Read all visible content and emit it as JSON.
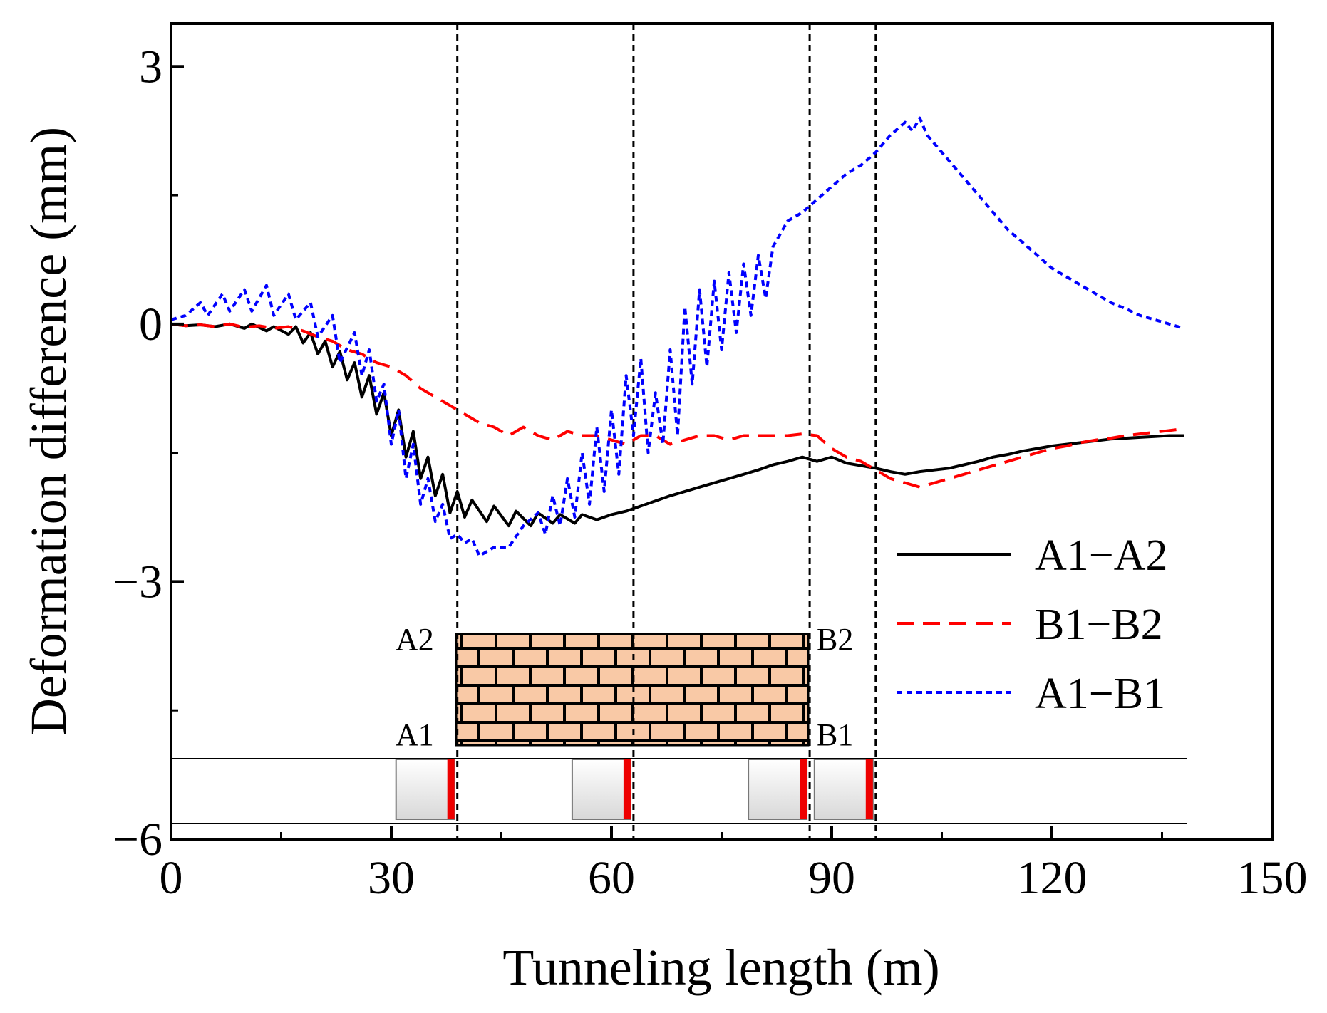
{
  "chart_data": {
    "type": "line",
    "xlabel": "Tunneling length (m)",
    "ylabel": "Deformation difference (mm)",
    "xlim": [
      0,
      150
    ],
    "ylim": [
      -6,
      3.5
    ],
    "x_ticks": [
      0,
      30,
      60,
      90,
      120,
      150
    ],
    "x_tick_labels": [
      "0",
      "30",
      "60",
      "90",
      "120",
      "150"
    ],
    "y_ticks": [
      3,
      0,
      -3,
      -6
    ],
    "y_tick_labels": [
      "3",
      "0",
      "−3",
      "−6"
    ],
    "grid": false,
    "legend_position": "bottom-right",
    "vertical_markers": [
      39,
      63,
      87,
      96
    ],
    "series": [
      {
        "name": "A1−A2",
        "color": "#000000",
        "dash": "solid",
        "points": [
          [
            0,
            0
          ],
          [
            2,
            -0.02
          ],
          [
            4,
            -0.01
          ],
          [
            6,
            -0.03
          ],
          [
            8,
            0.0
          ],
          [
            10,
            -0.05
          ],
          [
            11,
            0.0
          ],
          [
            13,
            -0.08
          ],
          [
            14,
            -0.03
          ],
          [
            16,
            -0.12
          ],
          [
            17,
            -0.03
          ],
          [
            18,
            -0.22
          ],
          [
            19,
            -0.1
          ],
          [
            20,
            -0.35
          ],
          [
            21,
            -0.2
          ],
          [
            22,
            -0.5
          ],
          [
            23,
            -0.32
          ],
          [
            24,
            -0.65
          ],
          [
            25,
            -0.45
          ],
          [
            26,
            -0.85
          ],
          [
            27,
            -0.6
          ],
          [
            28,
            -1.05
          ],
          [
            29,
            -0.8
          ],
          [
            30,
            -1.3
          ],
          [
            31,
            -1.0
          ],
          [
            32,
            -1.55
          ],
          [
            33,
            -1.25
          ],
          [
            34,
            -1.8
          ],
          [
            35,
            -1.55
          ],
          [
            36,
            -2.0
          ],
          [
            37,
            -1.75
          ],
          [
            38,
            -2.2
          ],
          [
            39,
            -1.95
          ],
          [
            40,
            -2.25
          ],
          [
            41,
            -2.05
          ],
          [
            43,
            -2.3
          ],
          [
            44,
            -2.12
          ],
          [
            46,
            -2.35
          ],
          [
            47,
            -2.18
          ],
          [
            49,
            -2.35
          ],
          [
            50,
            -2.2
          ],
          [
            52,
            -2.32
          ],
          [
            53,
            -2.22
          ],
          [
            55,
            -2.32
          ],
          [
            56,
            -2.22
          ],
          [
            58,
            -2.28
          ],
          [
            60,
            -2.22
          ],
          [
            62,
            -2.18
          ],
          [
            64,
            -2.12
          ],
          [
            66,
            -2.06
          ],
          [
            68,
            -2.0
          ],
          [
            70,
            -1.95
          ],
          [
            72,
            -1.9
          ],
          [
            74,
            -1.85
          ],
          [
            76,
            -1.8
          ],
          [
            78,
            -1.75
          ],
          [
            80,
            -1.7
          ],
          [
            82,
            -1.64
          ],
          [
            84,
            -1.6
          ],
          [
            86,
            -1.55
          ],
          [
            88,
            -1.6
          ],
          [
            90,
            -1.55
          ],
          [
            92,
            -1.62
          ],
          [
            94,
            -1.65
          ],
          [
            96,
            -1.68
          ],
          [
            98,
            -1.72
          ],
          [
            100,
            -1.75
          ],
          [
            102,
            -1.72
          ],
          [
            104,
            -1.7
          ],
          [
            106,
            -1.68
          ],
          [
            108,
            -1.64
          ],
          [
            110,
            -1.6
          ],
          [
            112,
            -1.55
          ],
          [
            114,
            -1.52
          ],
          [
            116,
            -1.48
          ],
          [
            118,
            -1.45
          ],
          [
            120,
            -1.42
          ],
          [
            122,
            -1.4
          ],
          [
            124,
            -1.38
          ],
          [
            126,
            -1.36
          ],
          [
            128,
            -1.34
          ],
          [
            130,
            -1.33
          ],
          [
            132,
            -1.32
          ],
          [
            134,
            -1.31
          ],
          [
            136,
            -1.3
          ],
          [
            138,
            -1.3
          ]
        ]
      },
      {
        "name": "B1−B2",
        "color": "#ff0000",
        "dash": "dashed",
        "points": [
          [
            0,
            0
          ],
          [
            2,
            -0.02
          ],
          [
            4,
            -0.01
          ],
          [
            6,
            -0.03
          ],
          [
            8,
            0.0
          ],
          [
            10,
            -0.04
          ],
          [
            12,
            -0.02
          ],
          [
            14,
            -0.05
          ],
          [
            16,
            -0.03
          ],
          [
            18,
            -0.08
          ],
          [
            20,
            -0.15
          ],
          [
            22,
            -0.2
          ],
          [
            24,
            -0.3
          ],
          [
            26,
            -0.35
          ],
          [
            28,
            -0.45
          ],
          [
            30,
            -0.5
          ],
          [
            32,
            -0.6
          ],
          [
            34,
            -0.75
          ],
          [
            36,
            -0.85
          ],
          [
            38,
            -0.95
          ],
          [
            39,
            -1.0
          ],
          [
            40,
            -1.05
          ],
          [
            42,
            -1.15
          ],
          [
            44,
            -1.2
          ],
          [
            46,
            -1.3
          ],
          [
            48,
            -1.2
          ],
          [
            50,
            -1.3
          ],
          [
            52,
            -1.35
          ],
          [
            54,
            -1.25
          ],
          [
            56,
            -1.3
          ],
          [
            58,
            -1.3
          ],
          [
            60,
            -1.35
          ],
          [
            62,
            -1.4
          ],
          [
            64,
            -1.3
          ],
          [
            66,
            -1.3
          ],
          [
            68,
            -1.4
          ],
          [
            70,
            -1.35
          ],
          [
            72,
            -1.3
          ],
          [
            74,
            -1.3
          ],
          [
            76,
            -1.35
          ],
          [
            78,
            -1.3
          ],
          [
            80,
            -1.3
          ],
          [
            82,
            -1.3
          ],
          [
            84,
            -1.3
          ],
          [
            86,
            -1.28
          ],
          [
            88,
            -1.3
          ],
          [
            90,
            -1.45
          ],
          [
            92,
            -1.55
          ],
          [
            94,
            -1.6
          ],
          [
            96,
            -1.7
          ],
          [
            98,
            -1.8
          ],
          [
            100,
            -1.85
          ],
          [
            102,
            -1.9
          ],
          [
            104,
            -1.85
          ],
          [
            106,
            -1.8
          ],
          [
            108,
            -1.75
          ],
          [
            110,
            -1.7
          ],
          [
            112,
            -1.65
          ],
          [
            114,
            -1.6
          ],
          [
            116,
            -1.55
          ],
          [
            118,
            -1.5
          ],
          [
            120,
            -1.45
          ],
          [
            122,
            -1.42
          ],
          [
            124,
            -1.38
          ],
          [
            126,
            -1.35
          ],
          [
            128,
            -1.33
          ],
          [
            130,
            -1.3
          ],
          [
            132,
            -1.28
          ],
          [
            134,
            -1.26
          ],
          [
            136,
            -1.24
          ],
          [
            138,
            -1.22
          ]
        ]
      },
      {
        "name": "A1−B1",
        "color": "#0000ff",
        "dash": "dotted",
        "points": [
          [
            0,
            0.05
          ],
          [
            2,
            0.1
          ],
          [
            4,
            0.25
          ],
          [
            5,
            0.1
          ],
          [
            7,
            0.35
          ],
          [
            8,
            0.15
          ],
          [
            10,
            0.4
          ],
          [
            11,
            0.15
          ],
          [
            13,
            0.45
          ],
          [
            14,
            0.1
          ],
          [
            16,
            0.35
          ],
          [
            17,
            0.05
          ],
          [
            19,
            0.25
          ],
          [
            20,
            -0.15
          ],
          [
            22,
            0.1
          ],
          [
            23,
            -0.45
          ],
          [
            25,
            -0.1
          ],
          [
            26,
            -0.6
          ],
          [
            27,
            -0.3
          ],
          [
            28,
            -0.9
          ],
          [
            29,
            -0.7
          ],
          [
            30,
            -1.4
          ],
          [
            31,
            -1.0
          ],
          [
            32,
            -1.8
          ],
          [
            33,
            -1.4
          ],
          [
            34,
            -2.1
          ],
          [
            35,
            -1.8
          ],
          [
            36,
            -2.3
          ],
          [
            37,
            -2.1
          ],
          [
            38,
            -2.5
          ],
          [
            39,
            -2.45
          ],
          [
            40,
            -2.55
          ],
          [
            41,
            -2.5
          ],
          [
            42,
            -2.7
          ],
          [
            44,
            -2.6
          ],
          [
            46,
            -2.6
          ],
          [
            48,
            -2.35
          ],
          [
            50,
            -2.2
          ],
          [
            51,
            -2.45
          ],
          [
            52,
            -2.0
          ],
          [
            53,
            -2.35
          ],
          [
            54,
            -1.8
          ],
          [
            55,
            -2.25
          ],
          [
            56,
            -1.5
          ],
          [
            57,
            -2.1
          ],
          [
            58,
            -1.2
          ],
          [
            59,
            -1.95
          ],
          [
            60,
            -1.0
          ],
          [
            61,
            -1.75
          ],
          [
            62,
            -0.6
          ],
          [
            63,
            -1.3
          ],
          [
            64,
            -0.4
          ],
          [
            65,
            -1.5
          ],
          [
            66,
            -0.8
          ],
          [
            67,
            -1.4
          ],
          [
            68,
            -0.3
          ],
          [
            69,
            -1.3
          ],
          [
            70,
            0.2
          ],
          [
            71,
            -0.7
          ],
          [
            72,
            0.4
          ],
          [
            73,
            -0.5
          ],
          [
            74,
            0.5
          ],
          [
            75,
            -0.3
          ],
          [
            76,
            0.6
          ],
          [
            77,
            -0.1
          ],
          [
            78,
            0.7
          ],
          [
            79,
            0.1
          ],
          [
            80,
            0.8
          ],
          [
            81,
            0.3
          ],
          [
            82,
            0.9
          ],
          [
            84,
            1.2
          ],
          [
            86,
            1.3
          ],
          [
            88,
            1.45
          ],
          [
            90,
            1.6
          ],
          [
            92,
            1.75
          ],
          [
            94,
            1.85
          ],
          [
            96,
            2.0
          ],
          [
            98,
            2.2
          ],
          [
            100,
            2.35
          ],
          [
            101,
            2.25
          ],
          [
            102,
            2.4
          ],
          [
            103,
            2.2
          ],
          [
            104,
            2.1
          ],
          [
            106,
            1.9
          ],
          [
            108,
            1.7
          ],
          [
            110,
            1.5
          ],
          [
            112,
            1.3
          ],
          [
            114,
            1.1
          ],
          [
            116,
            0.95
          ],
          [
            118,
            0.8
          ],
          [
            120,
            0.65
          ],
          [
            122,
            0.55
          ],
          [
            124,
            0.45
          ],
          [
            126,
            0.35
          ],
          [
            128,
            0.25
          ],
          [
            130,
            0.18
          ],
          [
            132,
            0.1
          ],
          [
            134,
            0.05
          ],
          [
            136,
            0.0
          ],
          [
            138,
            -0.05
          ]
        ]
      }
    ],
    "inset": {
      "wall_labels": [
        "A2",
        "B2",
        "A1",
        "B1"
      ],
      "colors": {
        "brick": "#f9c9a6",
        "mortar": "#000000",
        "face": "#ee0000",
        "box": "#e8e8e8"
      }
    }
  }
}
